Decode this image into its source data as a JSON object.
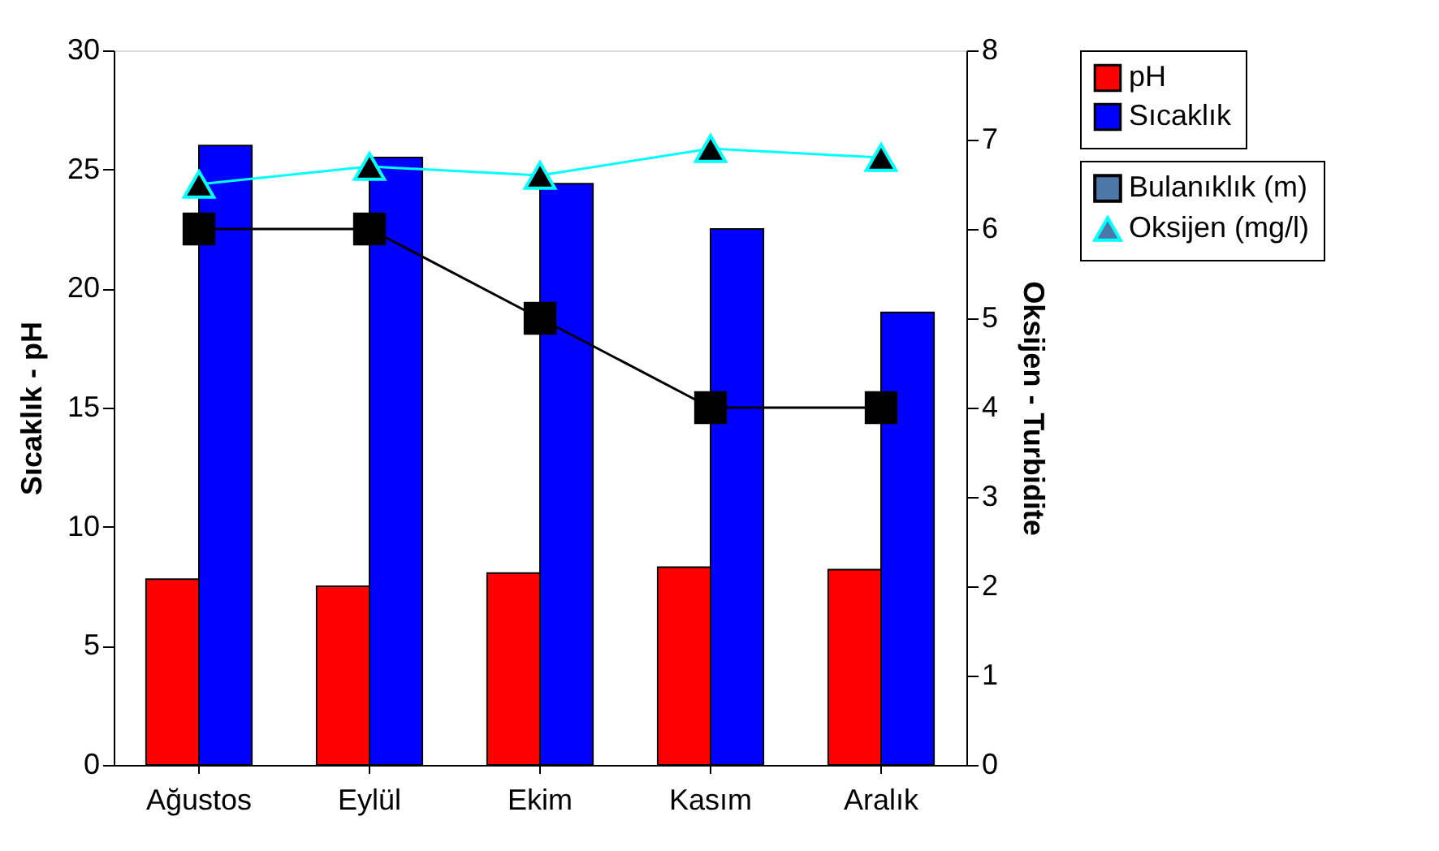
{
  "chart_data": {
    "type": "bar",
    "categories": [
      "Ağustos",
      "Eylül",
      "Ekim",
      "Kasım",
      "Aralık"
    ],
    "ylabel": "Sıcaklık - pH",
    "y2label": "Oksijen - Turbidite",
    "ylim": [
      0,
      30
    ],
    "yticks": [
      0,
      5,
      10,
      15,
      20,
      25,
      30
    ],
    "y2lim": [
      0,
      8
    ],
    "y2ticks": [
      0,
      1,
      2,
      3,
      4,
      5,
      6,
      7,
      8
    ],
    "grid": false,
    "legend": "top right",
    "series": [
      {
        "name": "pH",
        "color": "#ff0000",
        "values": [
          7.8,
          7.5,
          8.05,
          8.3,
          8.2
        ]
      },
      {
        "name": "Sıcaklık",
        "color": "#0000ff",
        "values": [
          26.0,
          25.5,
          24.4,
          22.5,
          19.0
        ]
      },
      {
        "name": "Bulanıklık (m)",
        "type": "line",
        "axis": "y2",
        "color": "#000000",
        "marker": "square",
        "values": [
          6,
          6,
          5,
          4,
          4
        ]
      },
      {
        "name": "Oksijen (mg/l)",
        "type": "line",
        "axis": "y2",
        "color": "#00ffff",
        "marker": "triangle",
        "values": [
          6.5,
          6.7,
          6.6,
          6.9,
          6.8
        ]
      }
    ]
  }
}
